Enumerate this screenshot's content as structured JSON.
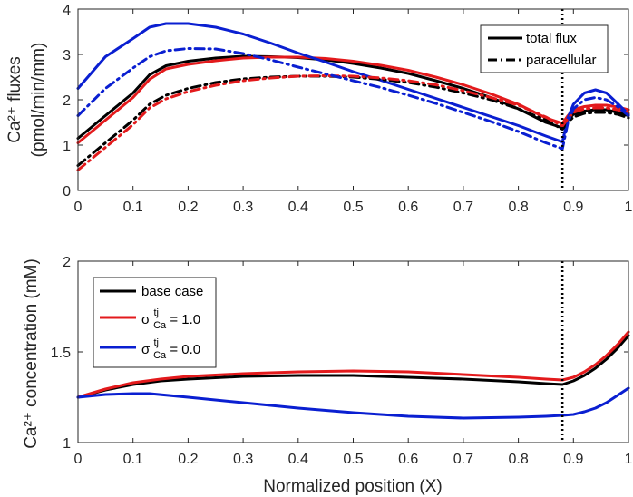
{
  "chart_data": [
    {
      "id": "top",
      "type": "line",
      "title": "",
      "ylabel_line1": "Ca²⁺ fluxes",
      "ylabel_line2": "(pmol/min/mm)",
      "xlabel": "",
      "xlim": [
        0,
        1
      ],
      "ylim": [
        0,
        4
      ],
      "xticks": [
        "0",
        "0.1",
        "0.2",
        "0.3",
        "0.4",
        "0.5",
        "0.6",
        "0.7",
        "0.8",
        "0.9",
        "1"
      ],
      "yticks": [
        "0",
        "1",
        "2",
        "3",
        "4"
      ],
      "vline_x": 0.88,
      "legend": [
        {
          "label": "total flux",
          "style": "solid"
        },
        {
          "label": "paracellular",
          "style": "dashdot"
        }
      ],
      "legend_position": "top-right",
      "series": [
        {
          "name": "total flux - base case",
          "color": "#000000",
          "style": "solid",
          "x": [
            0,
            0.05,
            0.1,
            0.13,
            0.16,
            0.2,
            0.25,
            0.3,
            0.35,
            0.4,
            0.45,
            0.5,
            0.55,
            0.6,
            0.65,
            0.7,
            0.75,
            0.8,
            0.85,
            0.88,
            0.89,
            0.9,
            0.92,
            0.94,
            0.96,
            0.98,
            1.0
          ],
          "y": [
            1.15,
            1.65,
            2.15,
            2.55,
            2.75,
            2.85,
            2.92,
            2.96,
            2.95,
            2.93,
            2.88,
            2.8,
            2.7,
            2.58,
            2.42,
            2.25,
            2.05,
            1.8,
            1.5,
            1.38,
            1.55,
            1.68,
            1.75,
            1.78,
            1.78,
            1.72,
            1.65
          ]
        },
        {
          "name": "total flux - sigma 1.0",
          "color": "#e31a1c",
          "style": "solid",
          "x": [
            0,
            0.05,
            0.1,
            0.13,
            0.16,
            0.2,
            0.25,
            0.3,
            0.35,
            0.4,
            0.45,
            0.5,
            0.55,
            0.6,
            0.65,
            0.7,
            0.75,
            0.8,
            0.85,
            0.88,
            0.89,
            0.9,
            0.92,
            0.94,
            0.96,
            0.98,
            1.0
          ],
          "y": [
            1.05,
            1.55,
            2.05,
            2.45,
            2.68,
            2.78,
            2.86,
            2.92,
            2.94,
            2.94,
            2.91,
            2.85,
            2.76,
            2.65,
            2.5,
            2.33,
            2.13,
            1.9,
            1.6,
            1.48,
            1.65,
            1.78,
            1.85,
            1.88,
            1.88,
            1.84,
            1.78
          ]
        },
        {
          "name": "total flux - sigma 0.0",
          "color": "#0a1fd1",
          "style": "solid",
          "x": [
            0,
            0.05,
            0.1,
            0.13,
            0.16,
            0.2,
            0.25,
            0.3,
            0.35,
            0.4,
            0.45,
            0.5,
            0.55,
            0.6,
            0.65,
            0.7,
            0.75,
            0.8,
            0.85,
            0.88,
            0.89,
            0.9,
            0.92,
            0.94,
            0.96,
            0.98,
            1.0
          ],
          "y": [
            2.25,
            2.95,
            3.35,
            3.6,
            3.68,
            3.68,
            3.6,
            3.45,
            3.25,
            3.03,
            2.83,
            2.62,
            2.43,
            2.23,
            2.03,
            1.83,
            1.63,
            1.43,
            1.2,
            1.07,
            1.6,
            1.9,
            2.15,
            2.22,
            2.15,
            1.92,
            1.68
          ]
        },
        {
          "name": "paracellular - base case",
          "color": "#000000",
          "style": "dashdot",
          "x": [
            0,
            0.05,
            0.1,
            0.13,
            0.16,
            0.2,
            0.25,
            0.3,
            0.35,
            0.4,
            0.45,
            0.5,
            0.55,
            0.6,
            0.65,
            0.7,
            0.75,
            0.8,
            0.85,
            0.88,
            0.89,
            0.9,
            0.92,
            0.94,
            0.96,
            0.98,
            1.0
          ],
          "y": [
            0.55,
            1.05,
            1.55,
            1.9,
            2.1,
            2.25,
            2.38,
            2.46,
            2.5,
            2.52,
            2.52,
            2.5,
            2.45,
            2.38,
            2.28,
            2.15,
            2.0,
            1.8,
            1.55,
            1.35,
            1.5,
            1.62,
            1.7,
            1.72,
            1.72,
            1.68,
            1.6
          ]
        },
        {
          "name": "paracellular - sigma 1.0",
          "color": "#e31a1c",
          "style": "dashdot",
          "x": [
            0,
            0.05,
            0.1,
            0.13,
            0.16,
            0.2,
            0.25,
            0.3,
            0.35,
            0.4,
            0.45,
            0.5,
            0.55,
            0.6,
            0.65,
            0.7,
            0.75,
            0.8,
            0.85,
            0.88,
            0.89,
            0.9,
            0.92,
            0.94,
            0.96,
            0.98,
            1.0
          ],
          "y": [
            0.45,
            0.95,
            1.45,
            1.82,
            2.02,
            2.18,
            2.32,
            2.42,
            2.48,
            2.52,
            2.53,
            2.52,
            2.48,
            2.42,
            2.33,
            2.2,
            2.05,
            1.88,
            1.62,
            1.42,
            1.58,
            1.72,
            1.8,
            1.82,
            1.82,
            1.78,
            1.72
          ]
        },
        {
          "name": "paracellular - sigma 0.0",
          "color": "#0a1fd1",
          "style": "dashdot",
          "x": [
            0,
            0.05,
            0.1,
            0.13,
            0.16,
            0.2,
            0.25,
            0.3,
            0.35,
            0.4,
            0.45,
            0.5,
            0.55,
            0.6,
            0.65,
            0.7,
            0.75,
            0.8,
            0.85,
            0.88,
            0.89,
            0.9,
            0.92,
            0.94,
            0.96,
            0.98,
            1.0
          ],
          "y": [
            1.65,
            2.25,
            2.7,
            2.95,
            3.08,
            3.13,
            3.12,
            3.02,
            2.88,
            2.72,
            2.57,
            2.42,
            2.27,
            2.1,
            1.92,
            1.72,
            1.52,
            1.3,
            1.05,
            0.92,
            1.5,
            1.8,
            2.0,
            2.05,
            2.0,
            1.85,
            1.65
          ]
        }
      ]
    },
    {
      "id": "bottom",
      "type": "line",
      "title": "",
      "ylabel_text": "Ca²⁺ concentration (mM)",
      "xlabel": "Normalized position (X)",
      "xlim": [
        0,
        1
      ],
      "ylim": [
        1,
        2
      ],
      "xticks": [
        "0",
        "0.1",
        "0.2",
        "0.3",
        "0.4",
        "0.5",
        "0.6",
        "0.7",
        "0.8",
        "0.9",
        "1"
      ],
      "yticks": [
        "1",
        "1.5",
        "2"
      ],
      "vline_x": 0.88,
      "legend_position": "top-left",
      "legend": [
        {
          "label": "base case",
          "color": "#000000"
        },
        {
          "label_prefix": "σ",
          "label_sup": "tj",
          "label_sub": "Ca",
          "label_suffix": " = 1.0",
          "color": "#e31a1c"
        },
        {
          "label_prefix": "σ",
          "label_sup": "tj",
          "label_sub": "Ca",
          "label_suffix": " = 0.0",
          "color": "#0a1fd1"
        }
      ],
      "series": [
        {
          "name": "base case",
          "color": "#000000",
          "x": [
            0,
            0.05,
            0.1,
            0.15,
            0.2,
            0.3,
            0.4,
            0.5,
            0.6,
            0.7,
            0.8,
            0.85,
            0.88,
            0.9,
            0.92,
            0.94,
            0.96,
            0.98,
            1.0
          ],
          "y": [
            1.25,
            1.29,
            1.32,
            1.34,
            1.35,
            1.365,
            1.37,
            1.37,
            1.36,
            1.35,
            1.335,
            1.325,
            1.32,
            1.34,
            1.37,
            1.41,
            1.46,
            1.52,
            1.59
          ]
        },
        {
          "name": "sigma 1.0",
          "color": "#e31a1c",
          "x": [
            0,
            0.05,
            0.1,
            0.15,
            0.2,
            0.3,
            0.4,
            0.5,
            0.6,
            0.7,
            0.8,
            0.85,
            0.88,
            0.9,
            0.92,
            0.94,
            0.96,
            0.98,
            1.0
          ],
          "y": [
            1.25,
            1.295,
            1.33,
            1.35,
            1.365,
            1.38,
            1.39,
            1.395,
            1.39,
            1.375,
            1.36,
            1.35,
            1.345,
            1.36,
            1.39,
            1.43,
            1.48,
            1.54,
            1.61
          ]
        },
        {
          "name": "sigma 0.0",
          "color": "#0a1fd1",
          "x": [
            0,
            0.05,
            0.1,
            0.13,
            0.2,
            0.3,
            0.4,
            0.5,
            0.6,
            0.7,
            0.8,
            0.85,
            0.88,
            0.9,
            0.92,
            0.94,
            0.96,
            0.98,
            1.0
          ],
          "y": [
            1.25,
            1.265,
            1.27,
            1.27,
            1.25,
            1.22,
            1.19,
            1.165,
            1.145,
            1.135,
            1.14,
            1.145,
            1.15,
            1.155,
            1.17,
            1.19,
            1.22,
            1.26,
            1.3
          ]
        }
      ]
    }
  ]
}
